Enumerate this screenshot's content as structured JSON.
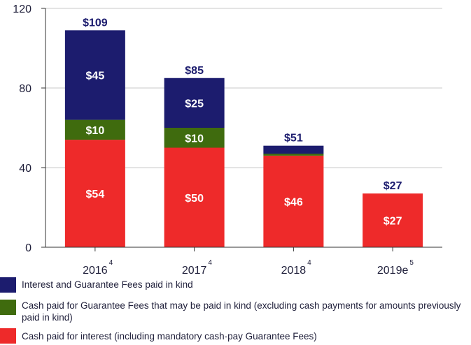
{
  "chart_data": {
    "type": "bar",
    "stacked": true,
    "categories": [
      "2016",
      "2017",
      "2018",
      "2019e"
    ],
    "category_footnotes": [
      "4",
      "4",
      "4",
      "5"
    ],
    "ylim": [
      0,
      120
    ],
    "yticks": [
      0,
      40,
      80,
      120
    ],
    "title": "",
    "xlabel": "",
    "ylabel": "",
    "grid": true,
    "legend_position": "bottom",
    "series": [
      {
        "name": "Cash paid for interest (including mandatory cash-pay Guarantee Fees)",
        "color": "#ee2a2a",
        "values": [
          54,
          50,
          46,
          27
        ],
        "labels": [
          "$54",
          "$50",
          "$46",
          "$27"
        ]
      },
      {
        "name": "Cash paid for Guarantee Fees that may be paid in kind (excluding cash payments for amounts previously paid in kind)",
        "color": "#3f6b0e",
        "values": [
          10,
          10,
          1,
          0
        ],
        "labels": [
          "$10",
          "$10",
          "",
          ""
        ]
      },
      {
        "name": "Interest and Guarantee Fees paid in kind",
        "color": "#1c1c6e",
        "values": [
          45,
          25,
          4,
          0
        ],
        "labels": [
          "$45",
          "$25",
          "",
          ""
        ]
      }
    ],
    "totals": [
      109,
      85,
      51,
      27
    ],
    "total_labels": [
      "$109",
      "$85",
      "$51",
      "$27"
    ]
  },
  "legend": [
    {
      "label": "Interest and Guarantee Fees paid in kind",
      "color": "#1c1c6e"
    },
    {
      "label": "Cash paid for Guarantee Fees that may be paid in kind (excluding cash payments for amounts previously paid in kind)",
      "color": "#3f6b0e"
    },
    {
      "label": "Cash paid for interest (including mandatory cash-pay Guarantee Fees)",
      "color": "#ee2a2a"
    }
  ]
}
